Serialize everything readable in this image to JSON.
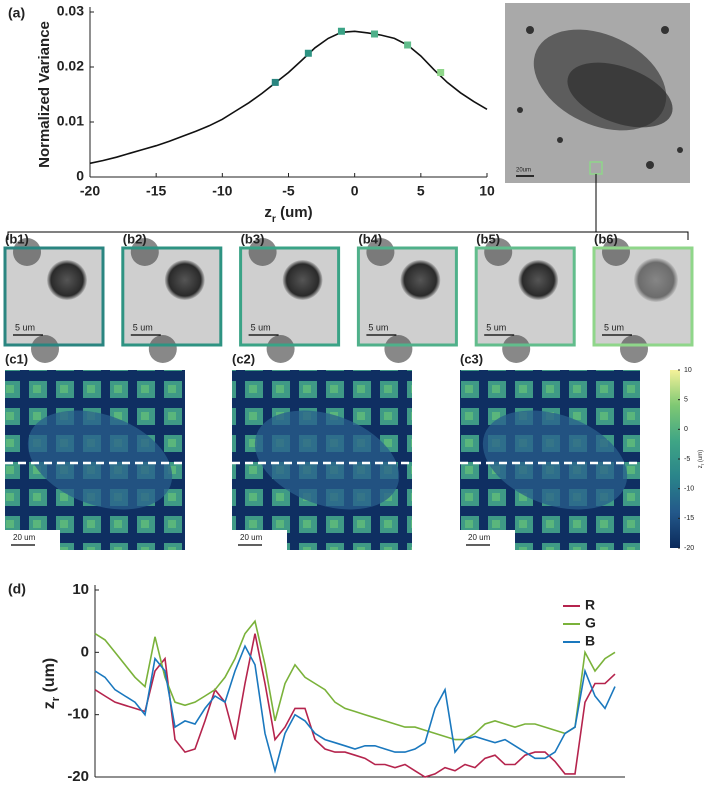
{
  "chart_data": [
    {
      "type": "line",
      "panel_label": "(a)",
      "xlabel": {
        "text": "z",
        "sub": "r",
        "unit": " (um)"
      },
      "ylabel": "Normalized Variance",
      "x": [
        -20,
        -19,
        -18,
        -17,
        -16,
        -15,
        -14,
        -13,
        -12,
        -11,
        -10,
        -9,
        -8,
        -7,
        -6,
        -5,
        -4,
        -3,
        -2,
        -1,
        0,
        1,
        2,
        3,
        4,
        5,
        6,
        7,
        8,
        9,
        10
      ],
      "values": [
        0.0025,
        0.003,
        0.0036,
        0.0043,
        0.005,
        0.0057,
        0.0065,
        0.0074,
        0.0083,
        0.0093,
        0.0105,
        0.012,
        0.0135,
        0.0152,
        0.0171,
        0.019,
        0.0212,
        0.0235,
        0.0252,
        0.0263,
        0.0265,
        0.0262,
        0.0258,
        0.0252,
        0.024,
        0.022,
        0.0195,
        0.0172,
        0.0153,
        0.0137,
        0.0123
      ],
      "color": "#111111",
      "markers": {
        "x": [
          -6,
          -3.5,
          -1,
          1.5,
          4,
          6.5
        ],
        "values": [
          0.0172,
          0.0225,
          0.0265,
          0.026,
          0.024,
          0.019
        ],
        "colors": [
          "#2a8580",
          "#2e9382",
          "#3aa386",
          "#4fb08a",
          "#62bd8c",
          "#8fd68a"
        ]
      },
      "xlim": [
        -20,
        10
      ],
      "xticks": [
        -20,
        -15,
        -10,
        -5,
        0,
        5,
        10
      ],
      "ylim": [
        0,
        0.03
      ],
      "yticks": [
        0,
        0.01,
        0.02,
        0.03
      ]
    },
    {
      "type": "colorbar",
      "ylabel": {
        "text": "z",
        "sub": "r",
        "unit": " (um)"
      },
      "colors": [
        "#0b2a5b",
        "#23588a",
        "#2a848a",
        "#3fa585",
        "#7ec873",
        "#f5f29a"
      ],
      "ylim": [
        -20,
        10
      ],
      "yticks": [
        10,
        5,
        0,
        -5,
        -10,
        -15,
        -20
      ]
    },
    {
      "type": "line",
      "panel_label": "(d)",
      "ylabel": {
        "text": "z",
        "sub": "r",
        "unit": " (um)"
      },
      "x": [
        0,
        1,
        2,
        3,
        4,
        5,
        6,
        7,
        8,
        9,
        10,
        11,
        12,
        13,
        14,
        15,
        16,
        17,
        18,
        19,
        20,
        21,
        22,
        23,
        24,
        25,
        26,
        27,
        28,
        29,
        30,
        31,
        32,
        33,
        34,
        35,
        36,
        37,
        38,
        39,
        40,
        41,
        42,
        43,
        44,
        45,
        46,
        47,
        48,
        49,
        50,
        51,
        52
      ],
      "xlim": [
        0,
        53
      ],
      "ylim": [
        -20,
        10
      ],
      "yticks": [
        -20,
        -10,
        0,
        10
      ],
      "legend": "upper right",
      "series": [
        {
          "name": "R",
          "color": "#b5244d",
          "values": [
            -6,
            -7,
            -8,
            -8.5,
            -9,
            -9.5,
            -3,
            -1,
            -14,
            -16,
            -15.5,
            -11,
            -6,
            -8,
            -14,
            -5,
            3,
            -5,
            -14,
            -12,
            -9,
            -9,
            -14,
            -15.5,
            -16,
            -16,
            -16.5,
            -17,
            -18,
            -18,
            -18.5,
            -18,
            -19,
            -20,
            -19.5,
            -18.5,
            -19,
            -18,
            -18.5,
            -17,
            -16.5,
            -18,
            -18,
            -16.5,
            -16,
            -16,
            -17.5,
            -19.5,
            -19.5,
            -8,
            -5,
            -5,
            -3.5
          ]
        },
        {
          "name": "G",
          "color": "#7ab23a",
          "values": [
            3,
            2,
            0,
            -2,
            -4,
            -5.5,
            2.5,
            -4,
            -8,
            -8.5,
            -8,
            -7,
            -6,
            -4,
            -1,
            3,
            5,
            -2,
            -11,
            -5,
            -2,
            -4,
            -5,
            -6,
            -8,
            -9,
            -9.5,
            -10,
            -10.5,
            -11,
            -11.5,
            -12,
            -12,
            -12.5,
            -13,
            -13.5,
            -14,
            -14,
            -13,
            -11.5,
            -11,
            -11.5,
            -12,
            -11.5,
            -11.5,
            -12,
            -12.5,
            -13,
            -12,
            0,
            -3,
            -1,
            0
          ]
        },
        {
          "name": "B",
          "color": "#1a78be",
          "values": [
            -3,
            -4,
            -6,
            -7,
            -8,
            -10,
            -1,
            -3,
            -12,
            -11,
            -11.5,
            -9,
            -7,
            -8,
            -3,
            1,
            -2,
            -13,
            -19,
            -13,
            -10,
            -11,
            -13,
            -14,
            -14.5,
            -15,
            -15.5,
            -15,
            -15,
            -15.5,
            -16,
            -16,
            -15.5,
            -14.5,
            -9,
            -6,
            -16,
            -14,
            -13.5,
            -14,
            -14.5,
            -14,
            -15,
            -16,
            -17,
            -17,
            -16,
            -13,
            -12,
            -3,
            -7,
            -9,
            -5.5
          ]
        }
      ]
    }
  ],
  "image_panels": {
    "a_scale": "20um",
    "b": [
      {
        "label": "(b1)",
        "scale": "5 um",
        "border": "#2a8580"
      },
      {
        "label": "(b2)",
        "scale": "5 um",
        "border": "#2e9382"
      },
      {
        "label": "(b3)",
        "scale": "5 um",
        "border": "#3aa386"
      },
      {
        "label": "(b4)",
        "scale": "5 um",
        "border": "#4fb08a"
      },
      {
        "label": "(b5)",
        "scale": "5 um",
        "border": "#62bd8c"
      },
      {
        "label": "(b6)",
        "scale": "5 um",
        "border": "#8fd68a"
      }
    ],
    "c": [
      {
        "label": "(c1)",
        "scale": "20 um"
      },
      {
        "label": "(c2)",
        "scale": "20 um"
      },
      {
        "label": "(c3)",
        "scale": "20 um"
      }
    ]
  }
}
